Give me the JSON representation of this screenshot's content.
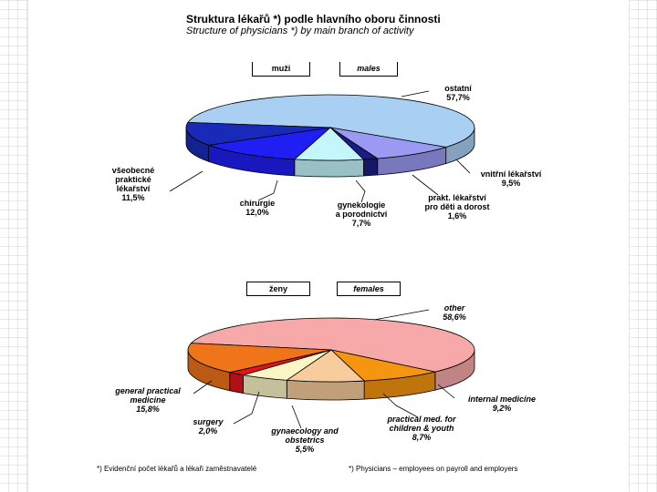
{
  "title": {
    "cz": "Struktura lékařů *) podle hlavního oboru činnosti",
    "en": "Structure of physicians *) by main branch of activity"
  },
  "chart_data": [
    {
      "type": "pie",
      "title": "muži",
      "title_en": "males",
      "slices": [
        {
          "label": "ostatní",
          "value": 57.7,
          "color": "#a9cff2"
        },
        {
          "label": "vnitřní lékařství",
          "value": 9.5,
          "color": "#9a9af2"
        },
        {
          "label": "prakt. lékařství pro děti a dorost",
          "value": 1.6,
          "color": "#1c1c88"
        },
        {
          "label": "gynekologie a porodnictví",
          "value": 7.7,
          "color": "#c4f6fb"
        },
        {
          "label": "chirurgie",
          "value": 12.0,
          "color": "#1f1ff4"
        },
        {
          "label": "všeobecné praktické lékařství",
          "value": 11.5,
          "color": "#1a2ab8"
        }
      ],
      "labels": {
        "ostatni": [
          "ostatní",
          "57,7%"
        ],
        "vnitrni": [
          "vnitřní lékařství",
          "9,5%"
        ],
        "prakt_deti": [
          "prakt. lékařství",
          "pro děti a dorost",
          "1,6%"
        ],
        "gyn": [
          "gynekologie",
          "a porodnictví",
          "7,7%"
        ],
        "chir": [
          "chirurgie",
          "12,0%"
        ],
        "vseob": [
          "všeobecné",
          "praktické",
          "lékařství",
          "11,5%"
        ]
      }
    },
    {
      "type": "pie",
      "title": "ženy",
      "title_en": "females",
      "slices": [
        {
          "label": "other",
          "value": 58.6,
          "color": "#f7a9a9"
        },
        {
          "label": "internal medicine",
          "value": 9.2,
          "color": "#f59510"
        },
        {
          "label": "practical med. for children & youth",
          "value": 8.7,
          "color": "#f8cc9c"
        },
        {
          "label": "gynaecology and obstetrics",
          "value": 5.5,
          "color": "#fbf6c4"
        },
        {
          "label": "surgery",
          "value": 2.0,
          "color": "#e4141a"
        },
        {
          "label": "general practical medicine",
          "value": 15.8,
          "color": "#f0741a"
        }
      ],
      "labels": {
        "other": [
          "other",
          "58,6%"
        ],
        "internal": [
          "internal medicine",
          "9,2%"
        ],
        "practical": [
          "practical med. for",
          "children & youth",
          "8,7%"
        ],
        "gyn": [
          "gynaecology and",
          "obstetrics",
          "5,5%"
        ],
        "surgery": [
          "surgery",
          "2,0%"
        ],
        "general": [
          "general practical",
          "medicine",
          "15,8%"
        ]
      }
    }
  ],
  "footnotes": {
    "cz": "*) Evidenční počet lékařů a lékaři zaměstnavatelé",
    "en": "*) Physicians – employees on payroll and employers"
  },
  "colors": {
    "outline": "#000000"
  }
}
